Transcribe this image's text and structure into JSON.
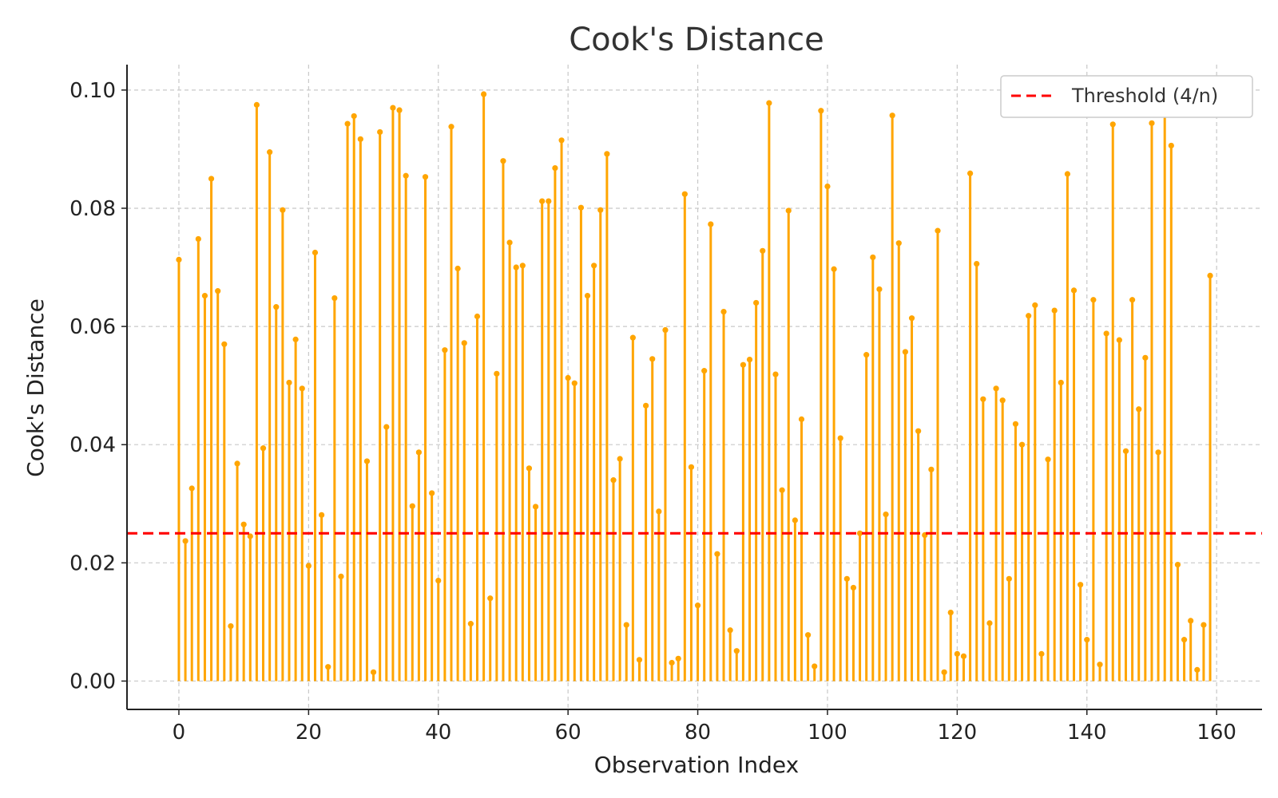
{
  "chart_data": {
    "type": "stem",
    "title": "Cook's Distance",
    "xlabel": "Observation Index",
    "ylabel": "Cook's Distance",
    "xlim": [
      -8,
      167
    ],
    "ylim": [
      -0.0048,
      0.1043
    ],
    "xticks": [
      0,
      20,
      40,
      60,
      80,
      100,
      120,
      140,
      160
    ],
    "yticks": [
      0.0,
      0.02,
      0.04,
      0.06,
      0.08,
      0.1
    ],
    "ytick_labels": [
      "0.00",
      "0.02",
      "0.04",
      "0.06",
      "0.08",
      "0.10"
    ],
    "grid": true,
    "legend_position": "top-right",
    "colors": {
      "stems": "#FFA500",
      "threshold": "#FF0000",
      "grid": "#c8c8c8"
    },
    "threshold": {
      "label": "Threshold (4/n)",
      "value": 0.025
    },
    "series": [
      {
        "x": [
          0,
          1,
          2,
          3,
          4,
          5,
          6,
          7,
          8,
          9,
          10,
          11,
          12,
          13,
          14,
          15,
          16,
          17,
          18,
          19,
          20,
          21,
          22,
          23,
          24,
          25,
          26,
          27,
          28,
          29,
          30,
          31,
          32,
          33,
          34,
          35,
          36,
          37,
          38,
          39,
          40,
          41,
          42,
          43,
          44,
          45,
          46,
          47,
          48,
          49,
          50,
          51,
          52,
          53,
          54,
          55,
          56,
          57,
          58,
          59,
          60,
          61,
          62,
          63,
          64,
          65,
          66,
          67,
          68,
          69,
          70,
          71,
          72,
          73,
          74,
          75,
          76,
          77,
          78,
          79,
          80,
          81,
          82,
          83,
          84,
          85,
          86,
          87,
          88,
          89,
          90,
          91,
          92,
          93,
          94,
          95,
          96,
          97,
          98,
          99,
          100,
          101,
          102,
          103,
          104,
          105,
          106,
          107,
          108,
          109,
          110,
          111,
          112,
          113,
          114,
          115,
          116,
          117,
          118,
          119,
          120,
          121,
          122,
          123,
          124,
          125,
          126,
          127,
          128,
          129,
          130,
          131,
          132,
          133,
          134,
          135,
          136,
          137,
          138,
          139,
          140,
          141,
          142,
          143,
          144,
          145,
          146,
          147,
          148,
          149,
          150,
          151,
          152,
          153,
          154,
          155,
          156,
          157,
          158,
          159
        ],
        "values": [
          0.0713,
          0.0237,
          0.0326,
          0.0748,
          0.0652,
          0.085,
          0.066,
          0.057,
          0.0093,
          0.0368,
          0.0265,
          0.0245,
          0.0975,
          0.0394,
          0.0895,
          0.0633,
          0.0797,
          0.0505,
          0.0578,
          0.0495,
          0.0195,
          0.0725,
          0.0281,
          0.0024,
          0.0648,
          0.0177,
          0.0943,
          0.0956,
          0.0917,
          0.0372,
          0.0015,
          0.0929,
          0.043,
          0.097,
          0.0966,
          0.0855,
          0.0296,
          0.0387,
          0.0853,
          0.0318,
          0.017,
          0.056,
          0.0938,
          0.0698,
          0.0572,
          0.0097,
          0.0617,
          0.0993,
          0.014,
          0.052,
          0.088,
          0.0742,
          0.07,
          0.0703,
          0.036,
          0.0295,
          0.0812,
          0.0812,
          0.0868,
          0.0915,
          0.0513,
          0.0504,
          0.0801,
          0.0652,
          0.0703,
          0.0797,
          0.0892,
          0.034,
          0.0376,
          0.0095,
          0.0581,
          0.0036,
          0.0466,
          0.0545,
          0.0287,
          0.0594,
          0.0031,
          0.0038,
          0.0824,
          0.0362,
          0.0128,
          0.0525,
          0.0773,
          0.0215,
          0.0625,
          0.0086,
          0.0051,
          0.0535,
          0.0544,
          0.064,
          0.0728,
          0.0978,
          0.0519,
          0.0323,
          0.0796,
          0.0272,
          0.0443,
          0.0078,
          0.0025,
          0.0965,
          0.0837,
          0.0697,
          0.0411,
          0.0173,
          0.0158,
          0.025,
          0.0552,
          0.0717,
          0.0663,
          0.0282,
          0.0957,
          0.0741,
          0.0557,
          0.0614,
          0.0423,
          0.0247,
          0.0358,
          0.0762,
          0.0015,
          0.0116,
          0.0046,
          0.0042,
          0.0859,
          0.0706,
          0.0477,
          0.0098,
          0.0495,
          0.0475,
          0.0173,
          0.0435,
          0.04,
          0.0618,
          0.0636,
          0.0046,
          0.0375,
          0.0627,
          0.0505,
          0.0858,
          0.0661,
          0.0163,
          0.007,
          0.0645,
          0.0028,
          0.0588,
          0.0942,
          0.0577,
          0.0389,
          0.0645,
          0.046,
          0.0547,
          0.0944,
          0.0387,
          0.0962,
          0.0906,
          0.0197,
          0.007,
          0.0102,
          0.0019,
          0.0095,
          0.0686
        ]
      }
    ]
  }
}
